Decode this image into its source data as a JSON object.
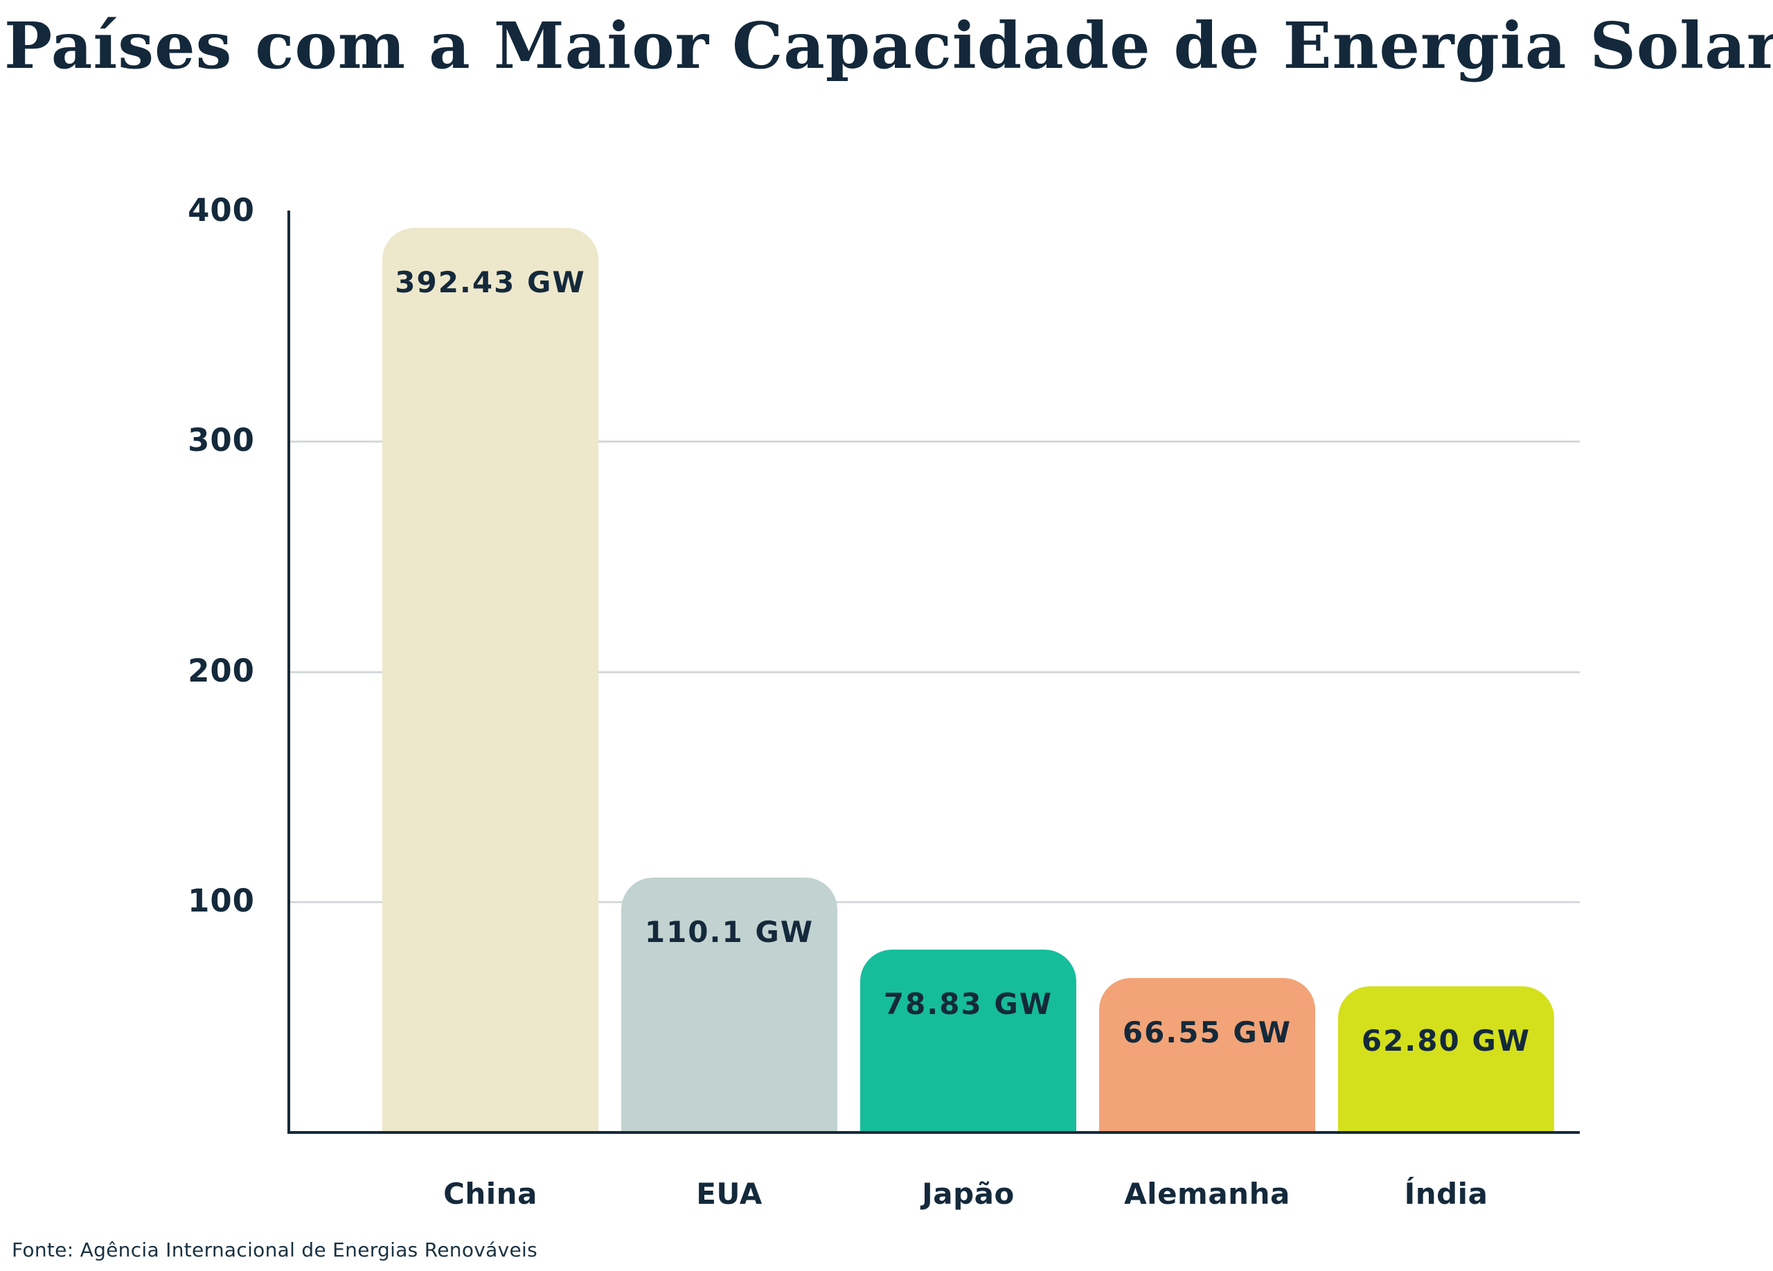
{
  "title": "Países com a Maior Capacidade de Energia Solar",
  "source": "Fonte: Agência Internacional de Energias Renováveis",
  "colors": {
    "background": "#ffffff",
    "text_navy": "#14293b",
    "axis": "#16293b",
    "gridline": "#d5d9db"
  },
  "chart_data": {
    "type": "bar",
    "title": "Países com a Maior Capacidade de Energia Solar",
    "categories": [
      "China",
      "EUA",
      "Japão",
      "Alemanha",
      "Índia"
    ],
    "values": [
      392.43,
      110.1,
      78.83,
      66.55,
      62.8
    ],
    "value_labels": [
      "392.43 GW",
      "110.1 GW",
      "78.83 GW",
      "66.55 GW",
      "62.80 GW"
    ],
    "bar_colors": [
      "#ede7cb",
      "#c2d2d0",
      "#16bd9b",
      "#f2a478",
      "#d4e01c"
    ],
    "unit": "GW",
    "xlabel": "",
    "ylabel": "",
    "ylim": [
      0,
      400
    ],
    "yticks": [
      100,
      200,
      300,
      400
    ],
    "gridline_values": [
      100,
      200,
      300
    ],
    "grid": true,
    "legend": "none",
    "source": "Fonte: Agência Internacional de Energias Renováveis"
  }
}
